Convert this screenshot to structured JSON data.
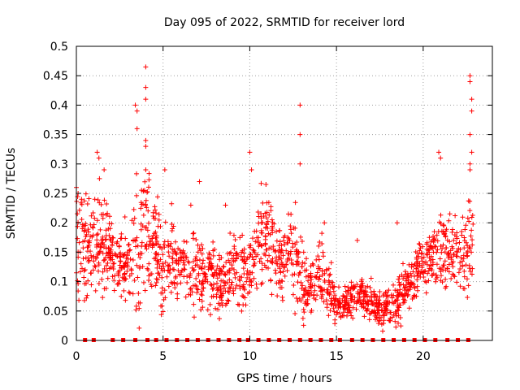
{
  "chart_data": {
    "type": "scatter",
    "title": "Day 095 of 2022, SRMTID for receiver lord",
    "xlabel": "GPS time / hours",
    "ylabel": "SRMTID / TECUs",
    "xlim": [
      0,
      23.99
    ],
    "ylim": [
      0,
      0.5
    ],
    "xticks": [
      0,
      5,
      10,
      15,
      20
    ],
    "xtick_labels": [
      "0",
      "5",
      "10",
      "15",
      "20"
    ],
    "yticks": [
      0,
      0.05,
      0.1,
      0.15,
      0.2,
      0.25,
      0.3,
      0.35,
      0.4,
      0.45,
      0.5
    ],
    "ytick_labels": [
      "0",
      "0.05",
      "0.1",
      "0.15",
      "0.2",
      "0.25",
      "0.3",
      "0.35",
      "0.4",
      "0.45",
      "0.5"
    ],
    "grid": true,
    "marker": "plus",
    "color": "#ff0000",
    "zero_markers_x": [
      0.5,
      1.0,
      2.1,
      2.7,
      3.4,
      4.1,
      4.6,
      5.2,
      5.8,
      6.4,
      7.0,
      7.6,
      8.2,
      8.8,
      9.4,
      9.9,
      10.5,
      11.1,
      11.7,
      12.3,
      12.9,
      13.5,
      14.1,
      14.7,
      15.2,
      15.9,
      16.5,
      17.1,
      17.7,
      18.3,
      18.9,
      19.5,
      20.1,
      20.7,
      21.4,
      22.0,
      22.6
    ],
    "envelope": [
      [
        0.0,
        0.16,
        0.06
      ],
      [
        0.3,
        0.18,
        0.06
      ],
      [
        0.6,
        0.15,
        0.05
      ],
      [
        1.0,
        0.17,
        0.06
      ],
      [
        1.4,
        0.16,
        0.05
      ],
      [
        1.8,
        0.18,
        0.05
      ],
      [
        2.2,
        0.13,
        0.03
      ],
      [
        2.6,
        0.13,
        0.03
      ],
      [
        3.0,
        0.12,
        0.04
      ],
      [
        3.4,
        0.16,
        0.07
      ],
      [
        3.8,
        0.17,
        0.07
      ],
      [
        4.2,
        0.18,
        0.07
      ],
      [
        4.6,
        0.16,
        0.06
      ],
      [
        5.0,
        0.12,
        0.05
      ],
      [
        5.4,
        0.15,
        0.05
      ],
      [
        5.8,
        0.13,
        0.04
      ],
      [
        6.2,
        0.14,
        0.04
      ],
      [
        6.6,
        0.11,
        0.04
      ],
      [
        7.0,
        0.12,
        0.04
      ],
      [
        7.4,
        0.1,
        0.03
      ],
      [
        7.8,
        0.12,
        0.04
      ],
      [
        8.2,
        0.09,
        0.03
      ],
      [
        8.6,
        0.1,
        0.03
      ],
      [
        9.0,
        0.13,
        0.04
      ],
      [
        9.4,
        0.11,
        0.04
      ],
      [
        9.8,
        0.12,
        0.04
      ],
      [
        10.2,
        0.15,
        0.05
      ],
      [
        10.6,
        0.17,
        0.05
      ],
      [
        11.0,
        0.18,
        0.05
      ],
      [
        11.4,
        0.16,
        0.05
      ],
      [
        11.8,
        0.13,
        0.04
      ],
      [
        12.2,
        0.15,
        0.05
      ],
      [
        12.6,
        0.14,
        0.05
      ],
      [
        13.0,
        0.11,
        0.04
      ],
      [
        13.4,
        0.09,
        0.03
      ],
      [
        13.8,
        0.1,
        0.03
      ],
      [
        14.2,
        0.12,
        0.04
      ],
      [
        14.6,
        0.08,
        0.03
      ],
      [
        15.0,
        0.06,
        0.02
      ],
      [
        15.4,
        0.06,
        0.02
      ],
      [
        15.8,
        0.07,
        0.02
      ],
      [
        16.2,
        0.07,
        0.02
      ],
      [
        16.6,
        0.07,
        0.02
      ],
      [
        17.0,
        0.06,
        0.02
      ],
      [
        17.4,
        0.05,
        0.02
      ],
      [
        17.8,
        0.06,
        0.02
      ],
      [
        18.2,
        0.05,
        0.02
      ],
      [
        18.6,
        0.07,
        0.03
      ],
      [
        19.0,
        0.09,
        0.03
      ],
      [
        19.4,
        0.11,
        0.03
      ],
      [
        19.8,
        0.13,
        0.03
      ],
      [
        20.2,
        0.14,
        0.04
      ],
      [
        20.6,
        0.15,
        0.04
      ],
      [
        21.0,
        0.15,
        0.05
      ],
      [
        21.4,
        0.16,
        0.05
      ],
      [
        21.8,
        0.15,
        0.04
      ],
      [
        22.2,
        0.14,
        0.04
      ],
      [
        22.6,
        0.15,
        0.05
      ],
      [
        22.9,
        0.19,
        0.05
      ]
    ],
    "spikes": [
      [
        0.0,
        0.26
      ],
      [
        0.1,
        0.25
      ],
      [
        0.3,
        0.24
      ],
      [
        1.2,
        0.32
      ],
      [
        1.3,
        0.31
      ],
      [
        1.6,
        0.29
      ],
      [
        2.8,
        0.21
      ],
      [
        3.4,
        0.4
      ],
      [
        3.5,
        0.39
      ],
      [
        3.5,
        0.36
      ],
      [
        4.0,
        0.465
      ],
      [
        4.0,
        0.43
      ],
      [
        4.0,
        0.41
      ],
      [
        4.0,
        0.34
      ],
      [
        4.0,
        0.33
      ],
      [
        4.0,
        0.29
      ],
      [
        5.1,
        0.29
      ],
      [
        7.1,
        0.27
      ],
      [
        10.0,
        0.32
      ],
      [
        10.1,
        0.29
      ],
      [
        12.9,
        0.4
      ],
      [
        12.9,
        0.35
      ],
      [
        12.9,
        0.3
      ],
      [
        20.9,
        0.32
      ],
      [
        21.0,
        0.31
      ],
      [
        22.7,
        0.45
      ],
      [
        22.7,
        0.44
      ],
      [
        22.8,
        0.41
      ],
      [
        22.8,
        0.39
      ],
      [
        22.7,
        0.35
      ],
      [
        22.8,
        0.32
      ],
      [
        22.7,
        0.3
      ],
      [
        22.7,
        0.29
      ],
      [
        18.5,
        0.2
      ],
      [
        14.3,
        0.2
      ],
      [
        16.2,
        0.17
      ],
      [
        8.6,
        0.23
      ],
      [
        6.6,
        0.23
      ]
    ]
  }
}
